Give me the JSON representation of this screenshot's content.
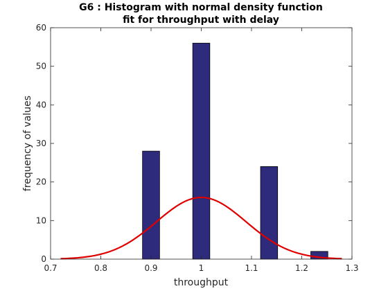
{
  "chart_data": {
    "type": "bar",
    "title_lines": [
      "G6 : Histogram with normal density function",
      "fit for throughput with delay"
    ],
    "xlabel": "throughput",
    "ylabel": "frequency of values",
    "xlim": [
      0.7,
      1.3
    ],
    "ylim": [
      0,
      60
    ],
    "xticks": [
      "0.7",
      "0.8",
      "0.9",
      "1",
      "1.1",
      "1.2",
      "1.3"
    ],
    "yticks": [
      "0",
      "10",
      "20",
      "30",
      "40",
      "50",
      "60"
    ],
    "bars": [
      {
        "x": 0.9,
        "value": 28
      },
      {
        "x": 1.0,
        "value": 56
      },
      {
        "x": 1.135,
        "value": 24
      },
      {
        "x": 1.235,
        "value": 2
      }
    ],
    "bar_width": 0.034,
    "fit_curve": {
      "type": "normal",
      "mean": 1.0,
      "peak": 16,
      "sigma": 0.089,
      "x_range": [
        0.72,
        1.28
      ]
    },
    "colors": {
      "bar_fill": "#2e2a7c",
      "bar_edge": "#000000",
      "curve": "#e00000",
      "axis": "#262626"
    },
    "grid": false
  }
}
